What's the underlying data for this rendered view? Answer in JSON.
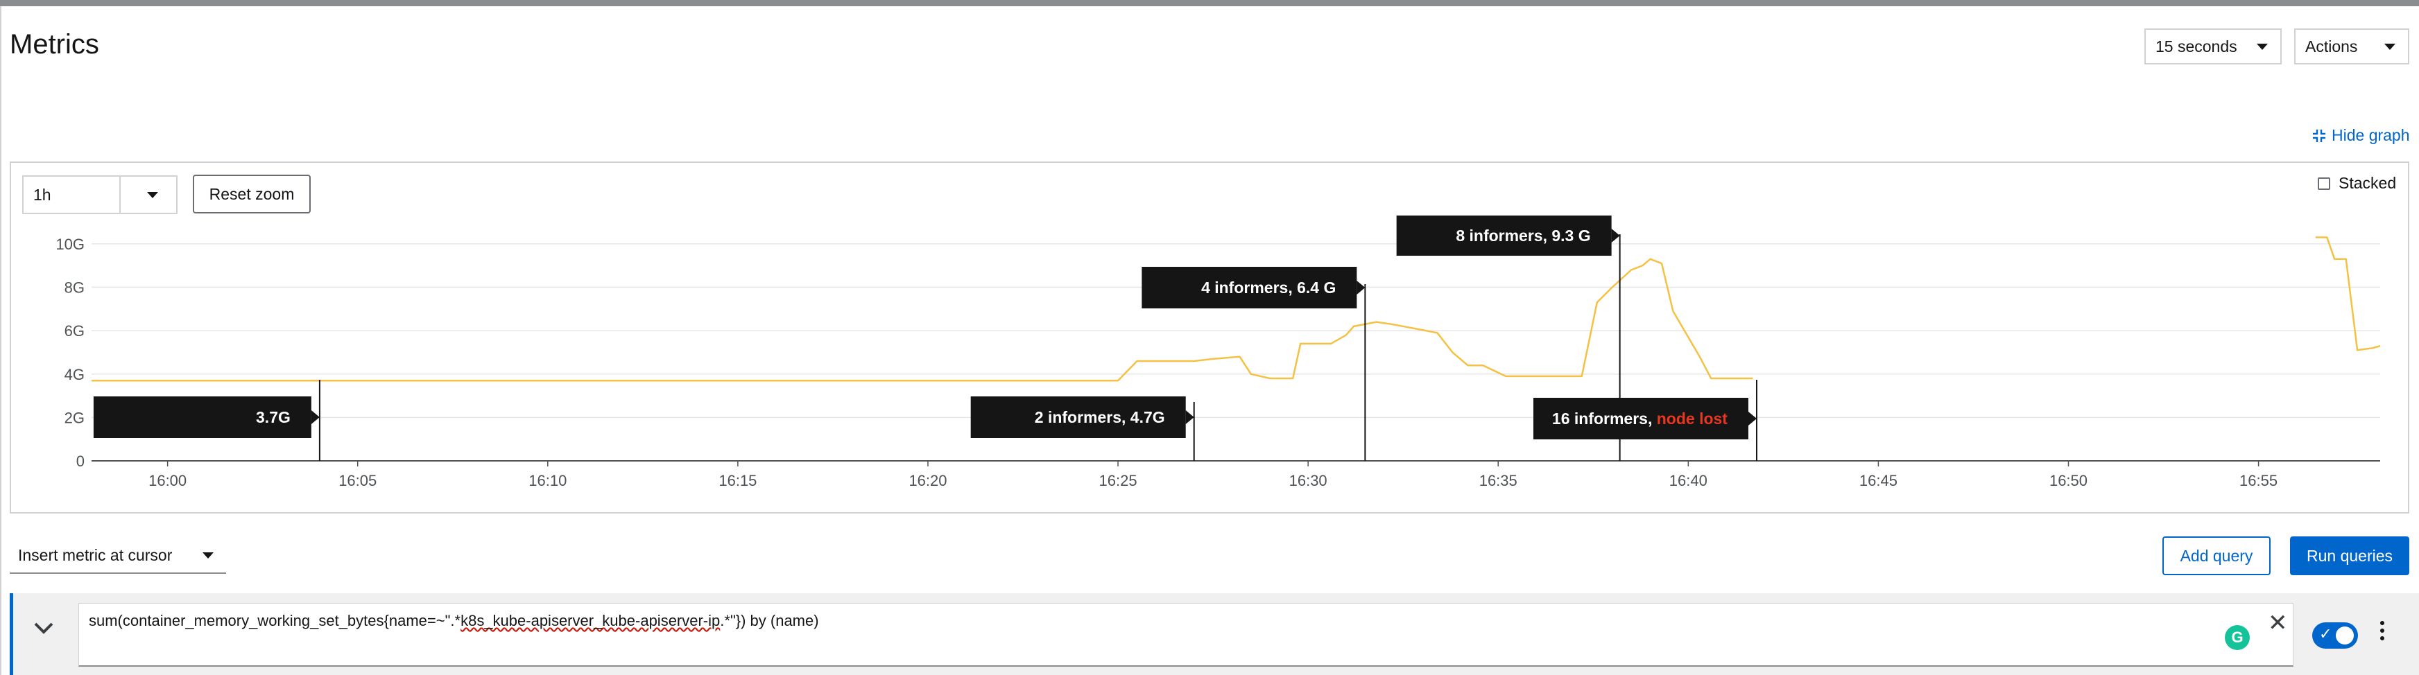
{
  "page": {
    "title": "Metrics"
  },
  "header": {
    "refresh_interval": "15 seconds",
    "actions_label": "Actions"
  },
  "graph_controls": {
    "hide_graph_label": "Hide graph",
    "time_range": "1h",
    "reset_zoom_label": "Reset zoom",
    "stacked_label": "Stacked",
    "stacked_checked": false
  },
  "chart_data": {
    "type": "line",
    "series": [
      {
        "color": "#f4c145",
        "points": [
          [
            "15:58",
            3.7
          ],
          [
            "16:00",
            3.7
          ],
          [
            "16:05",
            3.7
          ],
          [
            "16:10",
            3.7
          ],
          [
            "16:15",
            3.7
          ],
          [
            "16:20",
            3.7
          ],
          [
            "16:25",
            3.7
          ],
          [
            "16:25.5",
            4.6
          ],
          [
            "16:26",
            4.6
          ],
          [
            "16:27",
            4.6
          ],
          [
            "16:27.5",
            4.7
          ],
          [
            "16:28.2",
            4.8
          ],
          [
            "16:28.5",
            4.0
          ],
          [
            "16:29",
            3.8
          ],
          [
            "16:29.6",
            3.8
          ],
          [
            "16:29.8",
            5.4
          ],
          [
            "16:30.6",
            5.4
          ],
          [
            "16:31",
            5.8
          ],
          [
            "16:31.2",
            6.2
          ],
          [
            "16:31.8",
            6.4
          ],
          [
            "16:32.2",
            6.3
          ],
          [
            "16:32.8",
            6.1
          ],
          [
            "16:33.4",
            5.9
          ],
          [
            "16:33.8",
            5.0
          ],
          [
            "16:34.2",
            4.4
          ],
          [
            "16:34.6",
            4.4
          ],
          [
            "16:35.2",
            3.9
          ],
          [
            "16:37.2",
            3.9
          ],
          [
            "16:37.6",
            7.3
          ],
          [
            "16:38",
            8.0
          ],
          [
            "16:38.5",
            8.8
          ],
          [
            "16:38.8",
            9.0
          ],
          [
            "16:39",
            9.3
          ],
          [
            "16:39.3",
            9.1
          ],
          [
            "16:39.6",
            6.9
          ],
          [
            "16:40",
            5.7
          ],
          [
            "16:40.3",
            4.8
          ],
          [
            "16:40.6",
            3.8
          ],
          [
            "16:41.7",
            3.8
          ]
        ]
      },
      {
        "color": "#f4c145",
        "points": [
          [
            "16:56.5",
            10.3
          ],
          [
            "16:56.8",
            10.3
          ],
          [
            "16:57",
            9.3
          ],
          [
            "16:57.3",
            9.3
          ],
          [
            "16:57.6",
            5.1
          ],
          [
            "16:58",
            5.2
          ],
          [
            "16:58.2",
            5.3
          ]
        ]
      }
    ],
    "y_ticks": [
      "10G",
      "8G",
      "6G",
      "4G",
      "2G",
      "0"
    ],
    "y_tick_values": [
      10,
      8,
      6,
      4,
      2,
      0
    ],
    "ylim": [
      0,
      10.7
    ],
    "x_ticks": [
      "16:00",
      "16:05",
      "16:10",
      "16:15",
      "16:20",
      "16:25",
      "16:30",
      "16:35",
      "16:40",
      "16:45",
      "16:50",
      "16:55"
    ],
    "x_range": [
      "15:58",
      "16:58.2"
    ],
    "grid": "horizontal",
    "annotations": [
      {
        "time": "16:04",
        "text": "3.7G",
        "text_suffix": ""
      },
      {
        "time": "16:27",
        "text": "2 informers, 4.7G",
        "text_suffix": ""
      },
      {
        "time": "16:31.5",
        "text": "4 informers, 6.4 G",
        "text_suffix": ""
      },
      {
        "time": "16:38.2",
        "text": "8 informers, 9.3 G",
        "text_suffix": ""
      },
      {
        "time": "16:41.8",
        "text": "16 informers, ",
        "text_suffix": "node lost"
      }
    ],
    "annotation_suffix_color": "#e8361f"
  },
  "query_bar": {
    "insert_metric_label": "Insert metric at cursor",
    "add_query_label": "Add query",
    "run_queries_label": "Run queries"
  },
  "query": {
    "prefix": "sum(container_memory_working_set_bytes{name=~\".*",
    "underlined": "k8s_kube-apiserver_kube-apiserver-ip",
    "suffix": ".*\"}) by (name)",
    "enabled": true
  },
  "colors": {
    "accent": "#0066cc",
    "series": "#f4c145",
    "danger": "#e8361f"
  }
}
